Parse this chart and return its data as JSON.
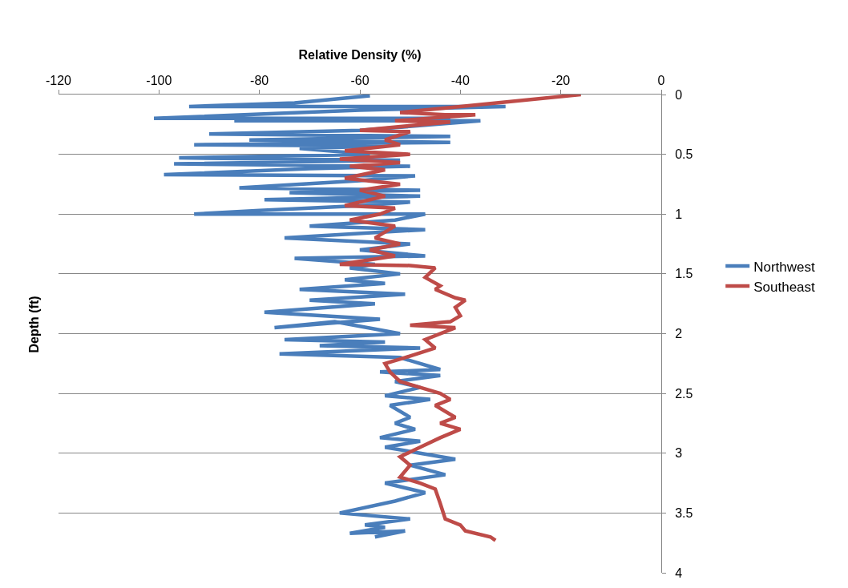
{
  "chart_data": {
    "type": "line",
    "xlabel": "Relative Density (%)",
    "ylabel": "Depth (ft)",
    "xlim": [
      -120,
      0
    ],
    "xticks": [
      -120,
      -100,
      -80,
      -60,
      -40,
      -20,
      0
    ],
    "ylim": [
      4,
      0
    ],
    "yticks": [
      0,
      0.5,
      1,
      1.5,
      2,
      2.5,
      3,
      3.5,
      4
    ],
    "grid": "y",
    "legend": "right",
    "series": [
      {
        "name": "Northwest",
        "color": "#4a7ebb",
        "x": [
          -58,
          -73,
          -94,
          -31,
          -60,
          -101,
          -42,
          -85,
          -36,
          -60,
          -90,
          -42,
          -82,
          -42,
          -93,
          -55,
          -72,
          -58,
          -96,
          -52,
          -97,
          -50,
          -70,
          -99,
          -49,
          -60,
          -84,
          -48,
          -74,
          -48,
          -79,
          -50,
          -60,
          -80,
          -93,
          -47,
          -53,
          -70,
          -47,
          -75,
          -50,
          -60,
          -47,
          -73,
          -57,
          -62,
          -52,
          -63,
          -55,
          -72,
          -51,
          -70,
          -57,
          -79,
          -56,
          -77,
          -65,
          -52,
          -75,
          -55,
          -68,
          -48,
          -76,
          -52,
          -44,
          -56,
          -44,
          -53,
          -48,
          -55,
          -46,
          -54,
          -50,
          -53,
          -49,
          -56,
          -48,
          -55,
          -48,
          -41,
          -50,
          -43,
          -55,
          -47,
          -53,
          -64,
          -50,
          -59,
          -55,
          -62,
          -51,
          -57
        ],
        "values": [
          0.01,
          0.07,
          0.1,
          0.1,
          0.13,
          0.2,
          0.2,
          0.22,
          0.22,
          0.3,
          0.33,
          0.35,
          0.38,
          0.4,
          0.42,
          0.43,
          0.45,
          0.5,
          0.53,
          0.55,
          0.58,
          0.6,
          0.62,
          0.67,
          0.68,
          0.72,
          0.78,
          0.8,
          0.82,
          0.85,
          0.88,
          0.9,
          0.93,
          0.97,
          1.0,
          1.0,
          1.05,
          1.1,
          1.13,
          1.2,
          1.25,
          1.3,
          1.35,
          1.37,
          1.42,
          1.45,
          1.5,
          1.55,
          1.58,
          1.63,
          1.67,
          1.72,
          1.75,
          1.82,
          1.88,
          1.95,
          1.9,
          2.0,
          2.05,
          2.07,
          2.1,
          2.12,
          2.17,
          2.2,
          2.3,
          2.32,
          2.35,
          2.4,
          2.45,
          2.52,
          2.55,
          2.6,
          2.7,
          2.75,
          2.8,
          2.87,
          2.9,
          2.95,
          3.0,
          3.05,
          3.1,
          3.18,
          3.25,
          3.33,
          3.4,
          3.5,
          3.55,
          3.6,
          3.62,
          3.67,
          3.65,
          3.7
        ]
      },
      {
        "name": "Southeast",
        "color": "#be4b48",
        "x": [
          -16,
          -40,
          -52,
          -43,
          -37,
          -53,
          -42,
          -60,
          -50,
          -55,
          -52,
          -63,
          -50,
          -64,
          -52,
          -62,
          -55,
          -63,
          -52,
          -60,
          -55,
          -63,
          -53,
          -56,
          -62,
          -53,
          -57,
          -52,
          -58,
          -53,
          -64,
          -50,
          -45,
          -47,
          -44,
          -45,
          -41,
          -39,
          -41,
          -40,
          -42,
          -50,
          -41,
          -47,
          -45,
          -51,
          -55,
          -54,
          -52,
          -48,
          -44,
          -42,
          -45,
          -41,
          -44,
          -40,
          -44,
          -48,
          -52,
          -50,
          -52,
          -48,
          -45,
          -44,
          -43,
          -40,
          -39,
          -34,
          -33
        ],
        "values": [
          0.0,
          0.1,
          0.15,
          0.17,
          0.17,
          0.22,
          0.23,
          0.3,
          0.31,
          0.38,
          0.42,
          0.47,
          0.5,
          0.54,
          0.57,
          0.6,
          0.63,
          0.7,
          0.75,
          0.8,
          0.85,
          0.93,
          0.95,
          1.0,
          1.05,
          1.1,
          1.2,
          1.25,
          1.3,
          1.35,
          1.42,
          1.43,
          1.45,
          1.53,
          1.6,
          1.63,
          1.7,
          1.72,
          1.78,
          1.85,
          1.9,
          1.93,
          1.95,
          2.05,
          2.12,
          2.2,
          2.25,
          2.32,
          2.4,
          2.45,
          2.5,
          2.55,
          2.6,
          2.7,
          2.75,
          2.8,
          2.87,
          2.95,
          3.03,
          3.1,
          3.2,
          3.25,
          3.3,
          3.42,
          3.55,
          3.6,
          3.65,
          3.7,
          3.73
        ]
      }
    ]
  }
}
